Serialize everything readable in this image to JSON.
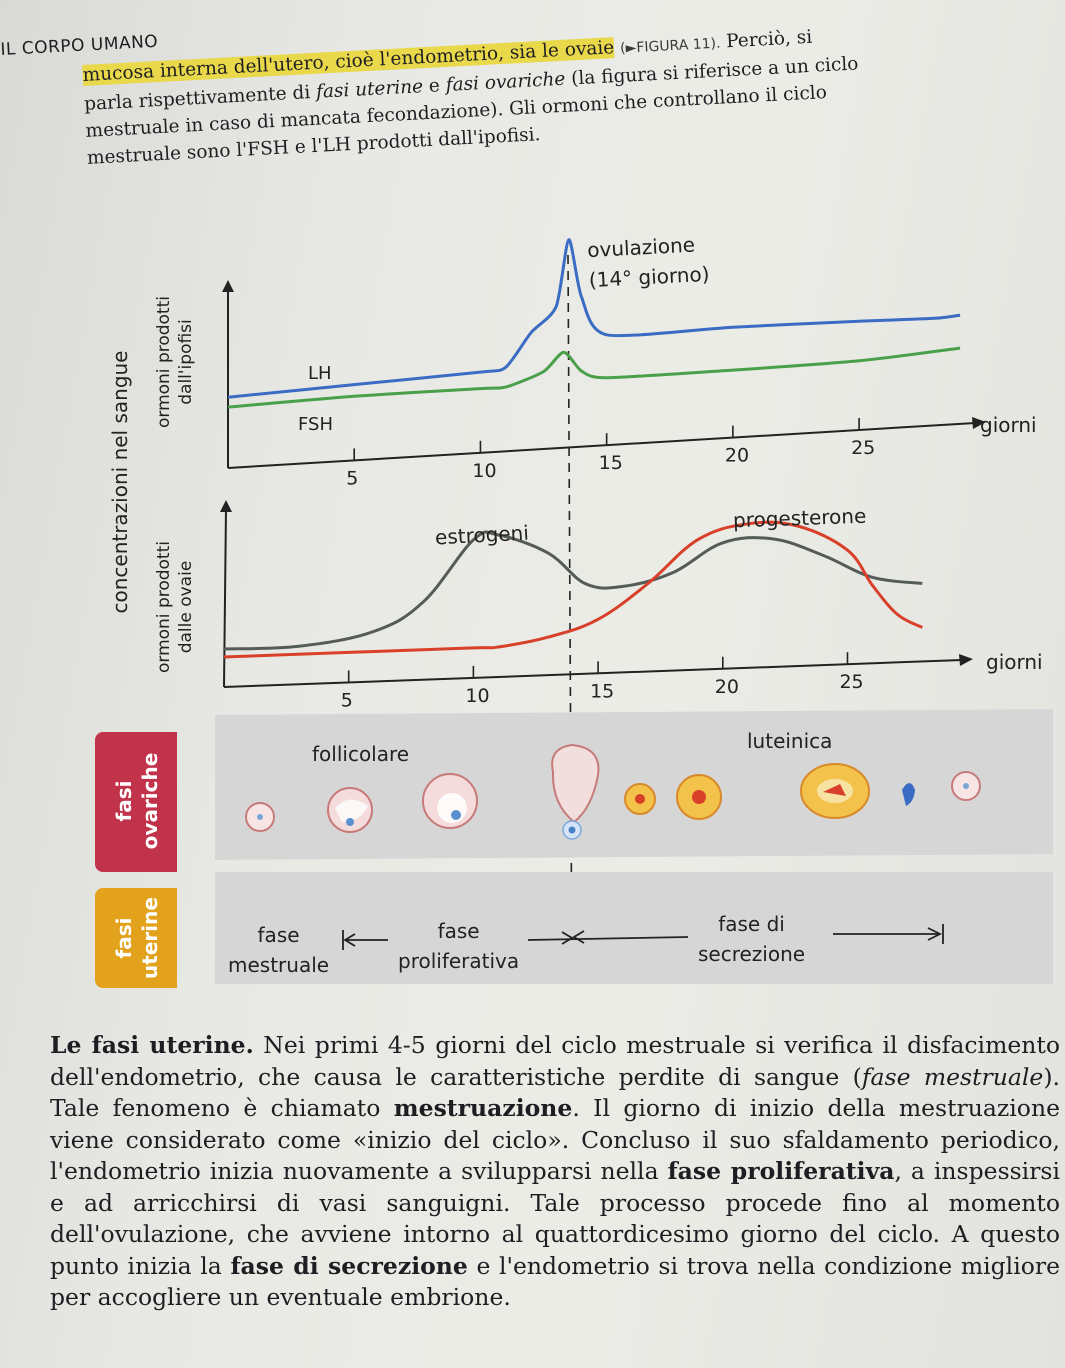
{
  "running_head": "IL CORPO UMANO",
  "intro": {
    "mark_text": "mucosa interna dell'utero, cioè l'endometrio, sia le ovaie",
    "figref": "(►FIGURA 11).",
    "line1_end": "Perciò, si",
    "line2": "parla rispettivamente di fasi uterine e fasi ovariche (la figura si riferisce a un ciclo",
    "line3": "mestruale in caso di mancata fecondazione). Gli ormoni che controllano il ciclo",
    "line4": "mestruale sono l'FSH e l'LH prodotti dall'ipofisi."
  },
  "figure": {
    "y_axis_main": "concentrazioni nel sangue",
    "top_chart": {
      "ylabel_line1": "ormoni prodotti",
      "ylabel_line2": "dall'ipofisi",
      "xlabel": "giorni",
      "annotation_line1": "ovulazione",
      "annotation_line2": "(14° giorno)",
      "series_labels": [
        "LH",
        "FSH"
      ]
    },
    "bottom_chart": {
      "ylabel_line1": "ormoni prodotti",
      "ylabel_line2": "dalle ovaie",
      "xlabel": "giorni",
      "series_labels": [
        "estrogeni",
        "progesterone"
      ]
    },
    "ovarian": {
      "tab_line1": "fasi",
      "tab_line2": "ovariche",
      "label_follicular": "follicolare",
      "label_luteal": "luteinica"
    },
    "uterine": {
      "tab_line1": "fasi",
      "tab_line2": "uterine",
      "menstrual_1": "fase",
      "menstrual_2": "mestruale",
      "proliferative_1": "fase",
      "proliferative_2": "proliferativa",
      "secretory_1": "fase di",
      "secretory_2": "secrezione"
    },
    "colors": {
      "LH": "#3b6cc4",
      "FSH": "#4aa04a",
      "estrogeni": "#555b57",
      "progesterone": "#d9402a",
      "ovarian_tab": "#c0334a",
      "uterine_tab": "#e2a21c"
    }
  },
  "chart_data": [
    {
      "type": "line",
      "ylabel": "ormoni prodotti dall'ipofisi",
      "xlabel": "giorni",
      "x_ticks": [
        5,
        10,
        15,
        20,
        25
      ],
      "xlim": [
        0,
        29
      ],
      "series": [
        {
          "name": "LH",
          "x": [
            0,
            5,
            10,
            11,
            12,
            13,
            13.5,
            14,
            15,
            20,
            25,
            28,
            29
          ],
          "y": [
            3.2,
            3.5,
            3.8,
            4.0,
            6.0,
            7.5,
            11.5,
            8.0,
            5.6,
            5.6,
            5.5,
            5.4,
            5.5
          ]
        },
        {
          "name": "FSH",
          "x": [
            0,
            5,
            10,
            11,
            12.5,
            13.3,
            14,
            15,
            20,
            25,
            29
          ],
          "y": [
            2.6,
            2.8,
            2.8,
            2.8,
            3.6,
            4.7,
            3.5,
            3.0,
            3.0,
            3.1,
            3.5
          ]
        }
      ]
    },
    {
      "type": "line",
      "ylabel": "ormoni prodotti dalle ovaie",
      "xlabel": "giorni",
      "x_ticks": [
        5,
        10,
        15,
        20,
        25
      ],
      "xlim": [
        0,
        29
      ],
      "series": [
        {
          "name": "estrogeni",
          "x": [
            0,
            3,
            6,
            8,
            10,
            11,
            13,
            14.5,
            16,
            18,
            20,
            22,
            24,
            26,
            28
          ],
          "y": [
            1.0,
            1.0,
            1.6,
            3.0,
            6.0,
            6.2,
            5.2,
            3.6,
            3.4,
            4.0,
            5.4,
            5.5,
            4.6,
            3.4,
            3.0
          ]
        },
        {
          "name": "progesterone",
          "x": [
            0,
            5,
            10,
            11,
            13,
            15,
            17,
            19,
            21,
            23,
            25,
            26,
            27,
            28
          ],
          "y": [
            0.6,
            0.6,
            0.6,
            0.6,
            1.0,
            1.8,
            3.5,
            5.6,
            6.3,
            6.1,
            4.8,
            3.0,
            1.5,
            0.8
          ]
        }
      ]
    }
  ],
  "body": {
    "title": "Le fasi uterine.",
    "p1": "Nei primi 4-5 giorni del ciclo mestruale si verifica il disfacimento dell'endometrio, che causa le caratteristiche perdite di sangue (",
    "p1_em": "fase mestruale",
    "p2": "). Tale fenomeno è chiamato ",
    "p2_b": "mestruazione",
    "p3": ". Il giorno di inizio della mestruazione viene considerato come «inizio del ciclo». Concluso il suo sfaldamento periodico, l'endometrio inizia nuovamente a svilupparsi nella ",
    "p3_b": "fase proliferativa",
    "p4": ", a inspessirsi e ad arricchirsi di vasi sanguigni. Tale processo procede fino al momento dell'ovulazione, che avviene intorno al quattordicesimo giorno del ciclo. A questo punto inizia la ",
    "p4_b": "fase di secrezione",
    "p5": " e l'endometrio si trova nella condizione migliore per accogliere un eventuale embrione."
  }
}
